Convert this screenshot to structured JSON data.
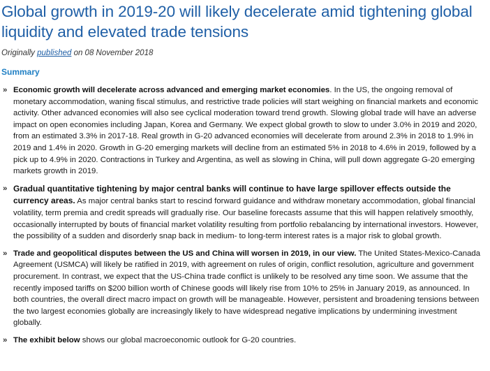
{
  "article": {
    "title": "Global growth in 2019-20 will likely decelerate amid tightening global liquidity and elevated trade tensions",
    "byline": {
      "prefix": "Originally ",
      "link_text": "published",
      "suffix": " on 08 November 2018"
    },
    "summary_heading": "Summary",
    "bullet_glyph": "»",
    "items": [
      {
        "lead": "Economic growth will decelerate across advanced and emerging market economies",
        "text": ". In the US, the ongoing removal of monetary accommodation, waning fiscal stimulus, and restrictive trade policies will start weighing on financial markets and economic activity. Other advanced economies will also see cyclical moderation toward trend growth. Slowing global trade will have an adverse impact on open economies including Japan, Korea and Germany. We expect global growth to slow to under 3.0% in 2019 and 2020, from an estimated 3.3% in 2017-18. Real growth in G-20 advanced economies will decelerate from around 2.3% in 2018 to 1.9% in 2019 and 1.4% in 2020. Growth in G-20 emerging markets will decline from an estimated 5% in 2018 to 4.6% in 2019, followed by a pick up to 4.9% in 2020. Contractions in Turkey and Argentina, as well as slowing in China, will pull down aggregate G-20 emerging markets growth in 2019."
      },
      {
        "lead": "Gradual quantitative tightening by major central banks will continue to have large spillover effects outside the currency areas.",
        "text": " As major central banks start to rescind forward guidance and withdraw monetary accommodation, global financial volatility, term premia and credit spreads will gradually rise. Our baseline forecasts assume that this will happen relatively smoothly, occasionally interrupted by bouts of financial market volatility resulting from portfolio rebalancing by international investors. However, the possibility of a sudden and disorderly snap back in medium- to long-term interest rates is a major risk to global growth."
      },
      {
        "lead": "Trade and geopolitical disputes between the US and China will worsen in 2019, in our view.",
        "text": " The United States-Mexico-Canada Agreement (USMCA) will likely be ratified in 2019, with agreement on rules of origin, conflict resolution, agriculture and government procurement. In contrast, we expect that the US-China trade conflict is unlikely to be resolved any time soon. We assume that the recently imposed tariffs on $200 billion worth of Chinese goods will likely rise from 10% to 25% in January 2019, as announced. In both countries, the overall direct macro impact on growth will be manageable. However, persistent and broadening tensions between the two largest economies globally are increasingly likely to have widespread negative implications by undermining investment globally."
      },
      {
        "lead": "The exhibit below",
        "text": " shows our global macroeconomic outlook for G-20 countries."
      }
    ]
  },
  "colors": {
    "title": "#1f5fa6",
    "summary_heading": "#1f7fc4",
    "link": "#1f5fa6",
    "body_text": "#1a1a1a"
  }
}
